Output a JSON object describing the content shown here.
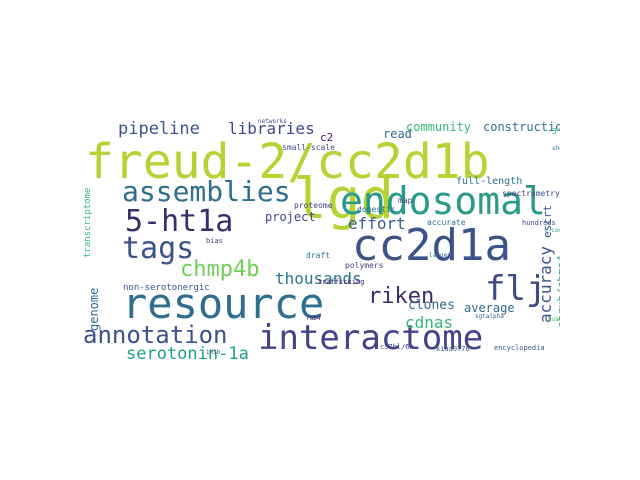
{
  "word_cloud": {
    "words": [
      {
        "key": "freud",
        "text": "freud-2/cc2d1b"
      },
      {
        "key": "lgd",
        "text": "lgd"
      },
      {
        "key": "cc2d1a",
        "text": "cc2d1a"
      },
      {
        "key": "endosomal",
        "text": "endosomal"
      },
      {
        "key": "resource",
        "text": "resource"
      },
      {
        "key": "interactome",
        "text": "interactome"
      },
      {
        "key": "assemblies",
        "text": "assemblies"
      },
      {
        "key": "tags",
        "text": "tags"
      },
      {
        "key": "5ht1a",
        "text": "5-ht1a"
      },
      {
        "key": "chmp4b",
        "text": "chmp4b"
      },
      {
        "key": "annotation",
        "text": "annotation"
      },
      {
        "key": "serotonin",
        "text": "serotonin-1a"
      },
      {
        "key": "pipeline",
        "text": "pipeline"
      },
      {
        "key": "libraries",
        "text": "libraries"
      },
      {
        "key": "community",
        "text": "community"
      },
      {
        "key": "construction",
        "text": "construction"
      },
      {
        "key": "read",
        "text": "read"
      },
      {
        "key": "c2",
        "text": "c2"
      },
      {
        "key": "effort",
        "text": "effort"
      },
      {
        "key": "project",
        "text": "project"
      },
      {
        "key": "thousands",
        "text": "thousands"
      },
      {
        "key": "riken",
        "text": "riken"
      },
      {
        "key": "flj",
        "text": "flj"
      },
      {
        "key": "cdnas",
        "text": "cdnas"
      },
      {
        "key": "clones",
        "text": "clones"
      },
      {
        "key": "average",
        "text": "average"
      },
      {
        "key": "genome",
        "text": "genome"
      },
      {
        "key": "non-sero",
        "text": "non-serotonergic"
      },
      {
        "key": "accuracy",
        "text": "accuracy"
      },
      {
        "key": "shrub",
        "text": "shrub/chmp4"
      },
      {
        "key": "escrt",
        "text": "escrt"
      },
      {
        "key": "fulllength",
        "text": "full-length"
      },
      {
        "key": "spectrometry",
        "text": "spectrometry"
      },
      {
        "key": "domestic",
        "text": "domestic"
      },
      {
        "key": "accurate",
        "text": "accurate"
      },
      {
        "key": "proteome",
        "text": "proteome"
      },
      {
        "key": "smallscale",
        "text": "small-scale"
      },
      {
        "key": "polymers",
        "text": "polymers"
      },
      {
        "key": "draft",
        "text": "draft"
      },
      {
        "key": "trafficking",
        "text": "trafficking"
      },
      {
        "key": "c57",
        "text": "c57bl/6n"
      },
      {
        "key": "encyclopedia",
        "text": "encyclopedia"
      },
      {
        "key": "kiaa",
        "text": "kiaa0776"
      },
      {
        "key": "hundreds",
        "text": "hundreds"
      },
      {
        "key": "bias",
        "text": "bias"
      },
      {
        "key": "sqtalpha",
        "text": "sgtalpha"
      },
      {
        "key": "3ests",
        "text": "3'-ests"
      },
      {
        "key": "shotgun",
        "text": "shotgun"
      },
      {
        "key": "map",
        "text": "map"
      },
      {
        "key": "public",
        "text": "public"
      },
      {
        "key": "rab4",
        "text": "rab4"
      },
      {
        "key": "transcriptome",
        "text": "transcriptome"
      },
      {
        "key": "networks",
        "text": "networks"
      },
      {
        "key": "inib",
        "text": "inib"
      },
      {
        "key": "largest",
        "text": "largest"
      },
      {
        "key": "ccomplex",
        "text": "c-complex"
      }
    ]
  }
}
